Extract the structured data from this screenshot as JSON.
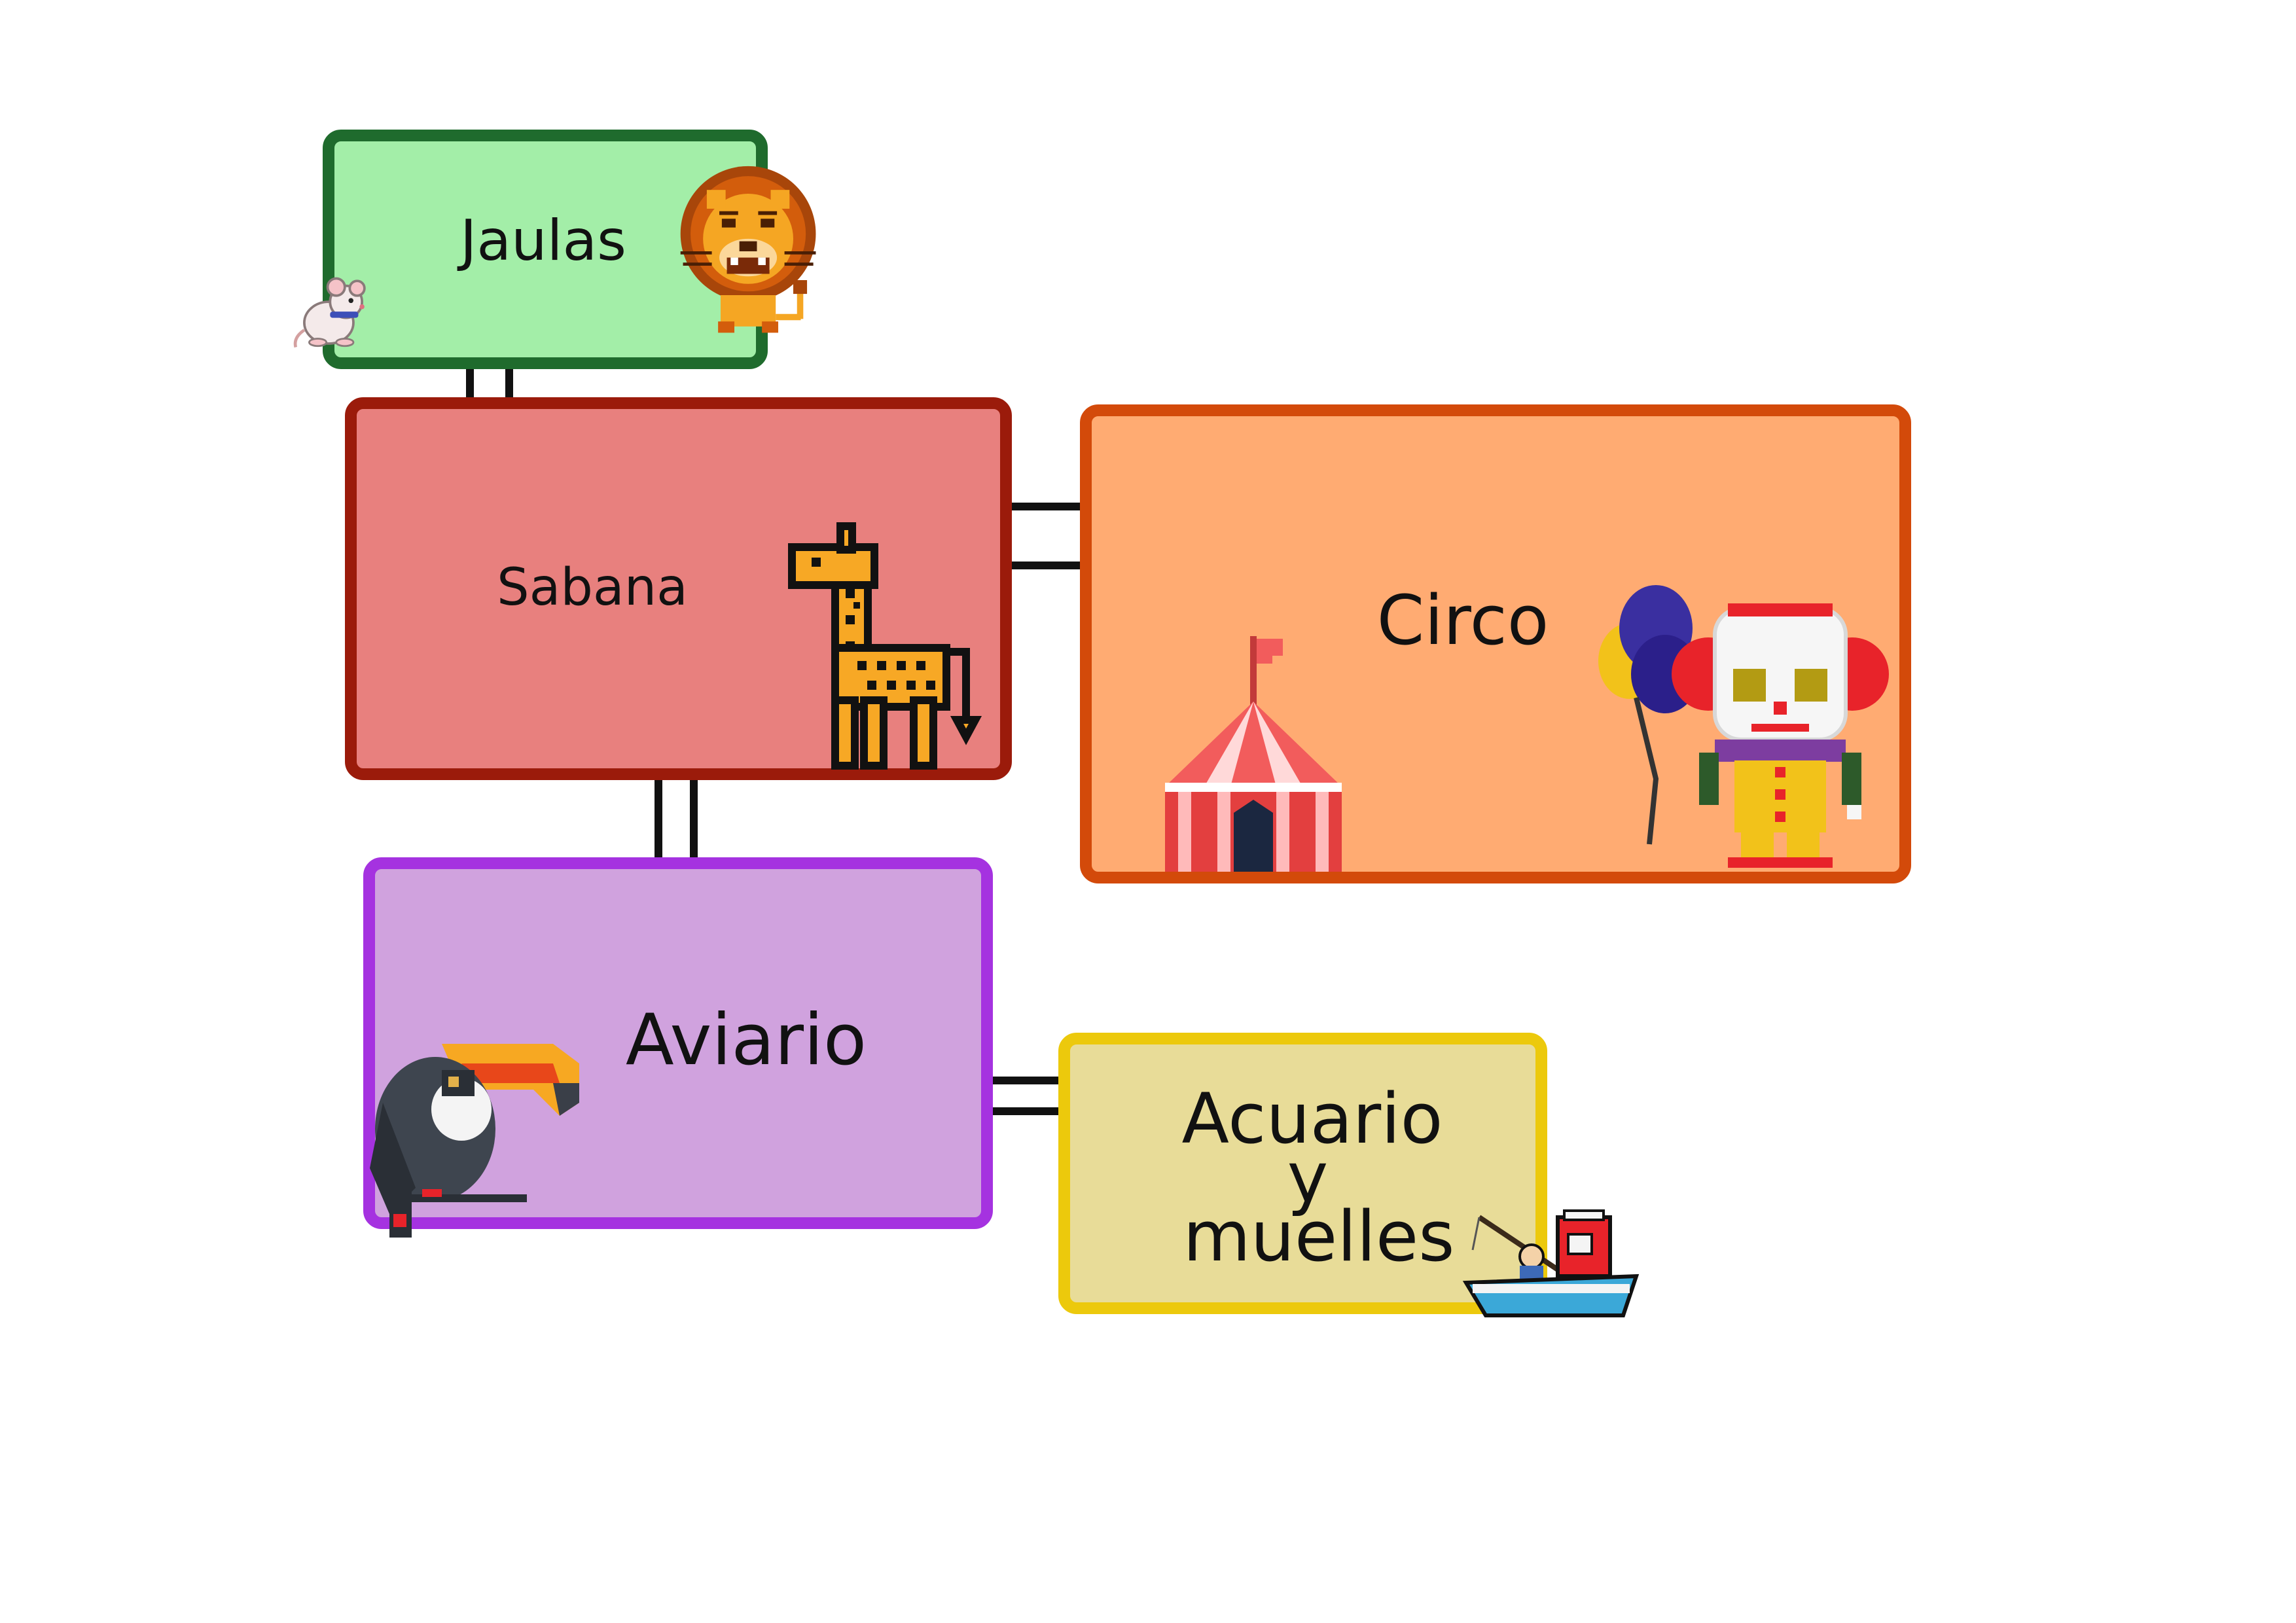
{
  "zones": {
    "jaulas": {
      "label": "Jaulas",
      "color": "#a3eea8",
      "border": "#1f6b2d",
      "icons": [
        "lion-icon",
        "mouse-icon"
      ]
    },
    "sabana": {
      "label": "Sabana",
      "color": "#e8807e",
      "border": "#9b1b0b",
      "icons": [
        "giraffe-icon"
      ]
    },
    "circo": {
      "label": "Circo",
      "color": "#ffab72",
      "border": "#d34a0a",
      "icons": [
        "circus-tent-icon",
        "clown-icon",
        "balloons-icon"
      ]
    },
    "aviario": {
      "label": "Aviario",
      "color": "#d0a2de",
      "border": "#a532e0",
      "icons": [
        "toucan-icon"
      ]
    },
    "acuario": {
      "label_line1": "Acuario",
      "label_line2": "y",
      "label_line3": "muelles",
      "color": "#e8dc98",
      "border": "#ecc90c",
      "icons": [
        "fishing-boat-icon"
      ]
    }
  },
  "connections": [
    [
      "jaulas",
      "sabana"
    ],
    [
      "sabana",
      "circo"
    ],
    [
      "sabana",
      "aviario"
    ],
    [
      "aviario",
      "acuario"
    ]
  ]
}
